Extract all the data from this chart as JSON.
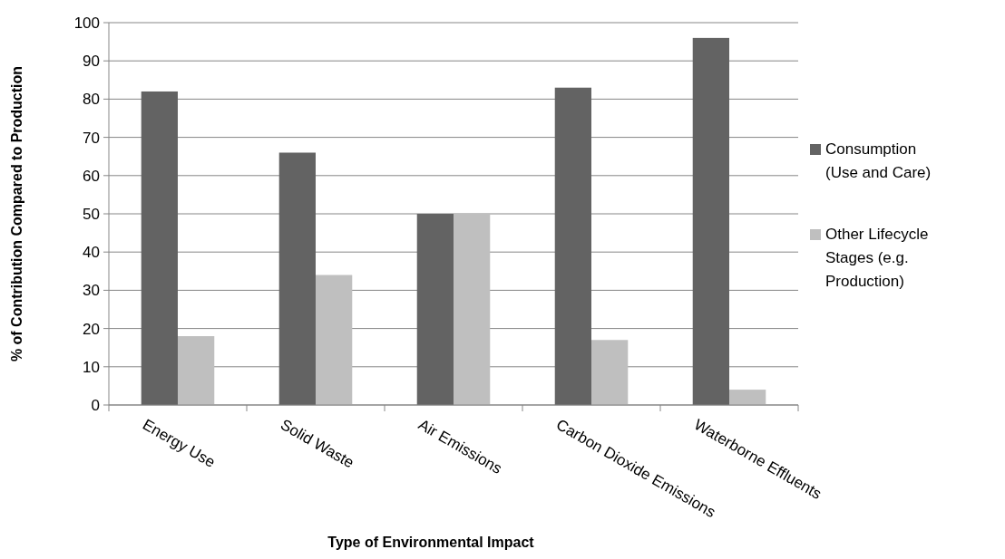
{
  "chart_data": {
    "type": "bar",
    "xlabel": "Type of Environmental Impact",
    "ylabel": "% of Contribution Compared to Production",
    "categories": [
      "Energy Use",
      "Solid Waste",
      "Air Emissions",
      "Carbon Dioxide Emissions",
      "Waterborne Effluents"
    ],
    "series": [
      {
        "name": "Consumption (Use and Care)",
        "color": "#636363",
        "values": [
          82,
          66,
          50,
          83,
          96
        ]
      },
      {
        "name": "Other Lifecycle Stages (e.g. Production)",
        "color": "#bfbfbf",
        "values": [
          18,
          34,
          50,
          17,
          4
        ]
      }
    ],
    "ylim": [
      0,
      100
    ],
    "yticks": [
      0,
      10,
      20,
      30,
      40,
      50,
      60,
      70,
      80,
      90,
      100
    ],
    "grid": "y",
    "legend": "right"
  }
}
